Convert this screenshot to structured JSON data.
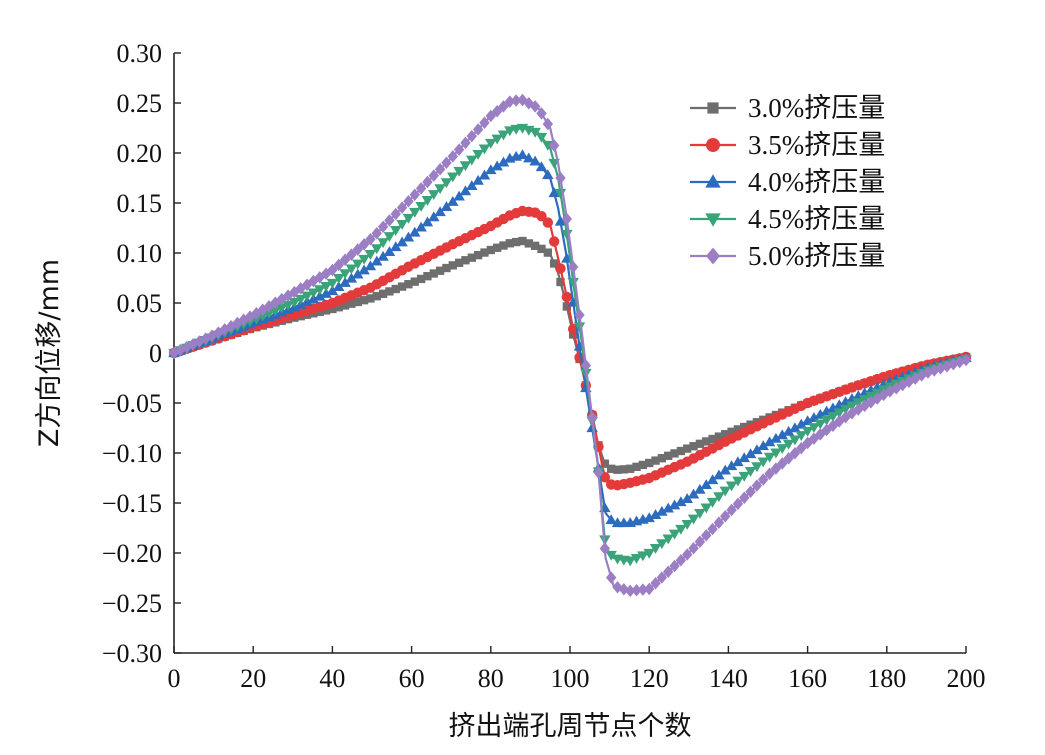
{
  "chart_data": {
    "type": "line",
    "title": "",
    "xlabel": "挤出端孔周节点个数",
    "ylabel": "Z方向位移/mm",
    "xlim": [
      0,
      200
    ],
    "ylim": [
      -0.3,
      0.3
    ],
    "xticks": [
      0,
      20,
      40,
      60,
      80,
      100,
      120,
      140,
      160,
      180,
      200
    ],
    "xtick_labels": [
      "0",
      "20",
      "40",
      "60",
      "80",
      "100",
      "120",
      "140",
      "160",
      "180",
      "200"
    ],
    "yticks": [
      0.3,
      0.25,
      0.2,
      0.15,
      0.1,
      0.05,
      0,
      -0.05,
      -0.1,
      -0.15,
      -0.2,
      -0.25,
      -0.3
    ],
    "ytick_labels": [
      "0.30",
      "0.25",
      "0.20",
      "0.15",
      "0.10",
      "0.05",
      "0",
      "−0.05",
      "−0.10",
      "−0.15",
      "−0.20",
      "−0.25",
      "−0.30"
    ],
    "grid": false,
    "legend_position": "top-right",
    "series": [
      {
        "name": "3.0%挤压量",
        "color": "#6e6e6e",
        "marker": "square",
        "x": [
          0,
          10,
          20,
          30,
          40,
          50,
          60,
          70,
          80,
          85,
          88,
          92,
          95,
          97,
          99,
          101,
          103,
          105,
          107,
          109,
          111,
          115,
          120,
          130,
          140,
          150,
          160,
          170,
          180,
          190,
          200
        ],
        "y": [
          0,
          0.013,
          0.025,
          0.035,
          0.044,
          0.055,
          0.07,
          0.087,
          0.103,
          0.11,
          0.112,
          0.106,
          0.099,
          0.08,
          0.05,
          0.015,
          -0.015,
          -0.05,
          -0.09,
          -0.113,
          -0.117,
          -0.116,
          -0.11,
          -0.095,
          -0.08,
          -0.065,
          -0.05,
          -0.036,
          -0.023,
          -0.012,
          -0.004
        ]
      },
      {
        "name": "3.5%挤压量",
        "color": "#e33b3b",
        "marker": "circle",
        "x": [
          0,
          10,
          20,
          30,
          40,
          50,
          60,
          70,
          80,
          85,
          88,
          92,
          95,
          97,
          99,
          101,
          103,
          105,
          107,
          109,
          111,
          115,
          120,
          130,
          140,
          150,
          160,
          170,
          180,
          190,
          200
        ],
        "y": [
          0,
          0.013,
          0.026,
          0.038,
          0.05,
          0.066,
          0.088,
          0.108,
          0.127,
          0.138,
          0.142,
          0.14,
          0.128,
          0.095,
          0.06,
          0.02,
          -0.015,
          -0.05,
          -0.09,
          -0.128,
          -0.133,
          -0.13,
          -0.125,
          -0.108,
          -0.087,
          -0.068,
          -0.05,
          -0.036,
          -0.023,
          -0.012,
          -0.004
        ]
      },
      {
        "name": "4.0%挤压量",
        "color": "#2d6bbf",
        "marker": "triangle-up",
        "x": [
          0,
          10,
          20,
          30,
          40,
          50,
          60,
          70,
          80,
          85,
          88,
          92,
          95,
          97,
          99,
          101,
          103,
          105,
          107,
          109,
          111,
          115,
          120,
          130,
          140,
          150,
          160,
          170,
          180,
          190,
          200
        ],
        "y": [
          0,
          0.015,
          0.03,
          0.045,
          0.062,
          0.088,
          0.118,
          0.15,
          0.183,
          0.195,
          0.198,
          0.19,
          0.175,
          0.145,
          0.1,
          0.045,
          -0.01,
          -0.06,
          -0.11,
          -0.16,
          -0.17,
          -0.17,
          -0.165,
          -0.145,
          -0.115,
          -0.09,
          -0.068,
          -0.048,
          -0.03,
          -0.015,
          -0.005
        ]
      },
      {
        "name": "4.5%挤压量",
        "color": "#3aa37a",
        "marker": "triangle-down",
        "x": [
          0,
          10,
          20,
          30,
          40,
          50,
          60,
          70,
          80,
          85,
          88,
          92,
          95,
          97,
          99,
          101,
          103,
          105,
          107,
          109,
          111,
          115,
          120,
          130,
          140,
          150,
          160,
          170,
          180,
          190,
          200
        ],
        "y": [
          0,
          0.016,
          0.033,
          0.05,
          0.07,
          0.1,
          0.138,
          0.175,
          0.21,
          0.223,
          0.225,
          0.22,
          0.205,
          0.175,
          0.125,
          0.065,
          0.01,
          -0.05,
          -0.11,
          -0.195,
          -0.205,
          -0.208,
          -0.2,
          -0.17,
          -0.135,
          -0.105,
          -0.078,
          -0.055,
          -0.035,
          -0.018,
          -0.006
        ]
      },
      {
        "name": "5.0%挤压量",
        "color": "#9b7ec4",
        "marker": "diamond",
        "x": [
          0,
          10,
          20,
          30,
          40,
          50,
          60,
          70,
          80,
          85,
          88,
          92,
          95,
          97,
          99,
          101,
          103,
          105,
          107,
          109,
          111,
          115,
          120,
          130,
          140,
          150,
          160,
          170,
          180,
          190,
          200
        ],
        "y": [
          0,
          0.018,
          0.038,
          0.06,
          0.083,
          0.115,
          0.155,
          0.195,
          0.237,
          0.252,
          0.253,
          0.245,
          0.225,
          0.19,
          0.14,
          0.08,
          0.02,
          -0.045,
          -0.11,
          -0.205,
          -0.233,
          -0.238,
          -0.236,
          -0.2,
          -0.16,
          -0.122,
          -0.09,
          -0.063,
          -0.04,
          -0.02,
          -0.007
        ]
      }
    ]
  }
}
